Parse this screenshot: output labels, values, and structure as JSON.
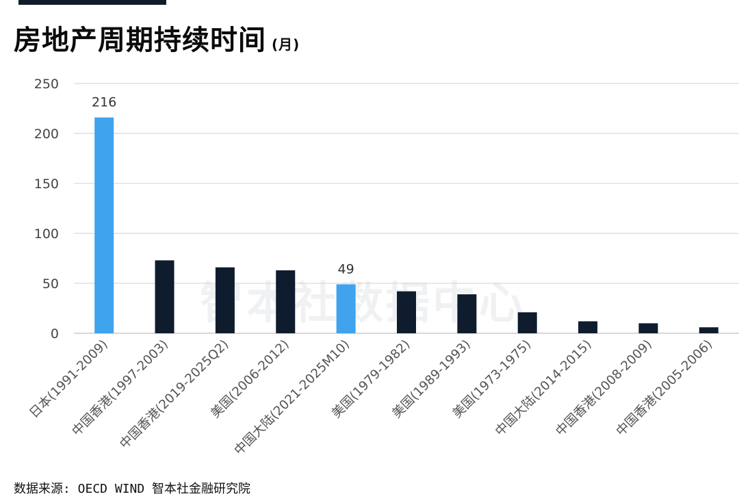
{
  "title": "房地产周期持续时间",
  "title_unit": "(月)",
  "watermark": "智本社数据中心",
  "source": "数据来源: OECD WIND 智本社金融研究院",
  "colors": {
    "highlight": "#3fa3ee",
    "normal": "#0f1c2e",
    "grid": "#d9d9d9"
  },
  "chart_data": {
    "type": "bar",
    "title": "房地产周期持续时间(月)",
    "categories": [
      "日本(1991-2009)",
      "中国香港(1997-2003)",
      "中国香港(2019-2025Q2)",
      "美国(2006-2012)",
      "中国大陆(2021-2025M10)",
      "美国(1979-1982)",
      "美国(1989-1993)",
      "美国(1973-1975)",
      "中国大陆(2014-2015)",
      "中国香港(2008-2009)",
      "中国香港(2005-2006)"
    ],
    "values": [
      216,
      73,
      66,
      63,
      49,
      42,
      39,
      21,
      12,
      10,
      6
    ],
    "highlighted": [
      true,
      false,
      false,
      false,
      true,
      false,
      false,
      false,
      false,
      false,
      false
    ],
    "data_labels": [
      "216",
      null,
      null,
      null,
      "49",
      null,
      null,
      null,
      null,
      null,
      null
    ],
    "yticks": [
      "0",
      "50",
      "100",
      "150",
      "200",
      "250"
    ],
    "ylim": [
      0,
      250
    ],
    "grid": true,
    "legend": "none"
  }
}
